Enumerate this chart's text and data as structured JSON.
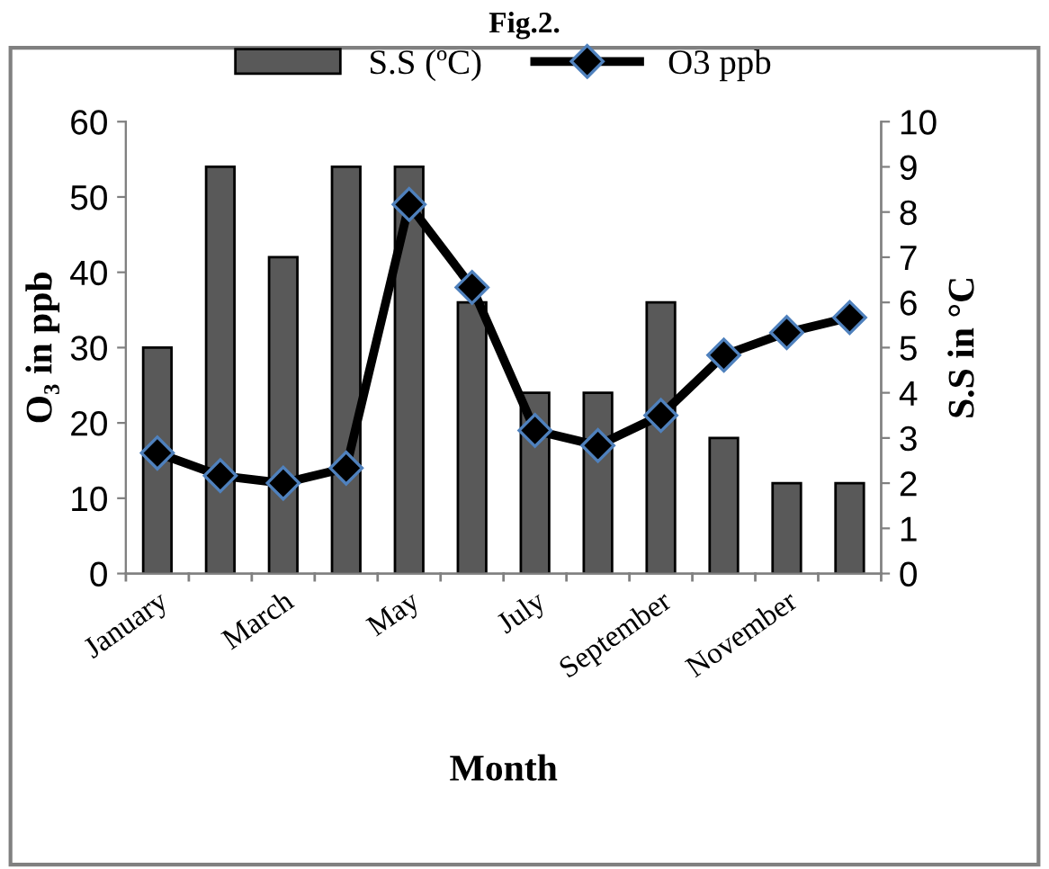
{
  "chart_data": {
    "type": "bar",
    "title": "Fig.2.",
    "xlabel": "Month",
    "ylabel": "O₃ in ppb",
    "y2label": "S.S in °C",
    "categories": [
      "January",
      null,
      "March",
      null,
      "May",
      null,
      "July",
      null,
      "September",
      null,
      "November",
      null
    ],
    "series": [
      {
        "name": "S.S (ºC)",
        "axis": "y2",
        "color": "#595959",
        "values": [
          5,
          9,
          7,
          9,
          9,
          6,
          4,
          4,
          6,
          3,
          2,
          2
        ]
      },
      {
        "name": "O3 ppb",
        "type": "line",
        "axis": "y",
        "color": "#000000",
        "marker": "diamond",
        "values": [
          16,
          13,
          12,
          14,
          49,
          38,
          19,
          17,
          21,
          29,
          32,
          34
        ]
      }
    ],
    "ylim": [
      0,
      60
    ],
    "yticks": [
      0,
      10,
      20,
      30,
      40,
      50,
      60
    ],
    "y2lim": [
      0,
      10
    ],
    "y2ticks": [
      0,
      1,
      2,
      3,
      4,
      5,
      6,
      7,
      8,
      9,
      10
    ],
    "legend": "top",
    "grid": false
  }
}
